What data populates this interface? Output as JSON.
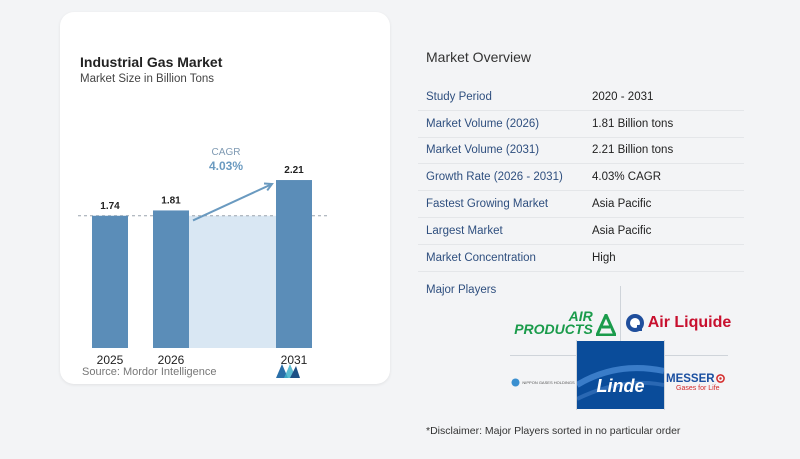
{
  "chart_data": {
    "type": "bar",
    "title": "Industrial Gas Market",
    "subtitle": "Market Size in Billion Tons",
    "categories": [
      "2025",
      "2026",
      "2031"
    ],
    "values": [
      1.74,
      1.81,
      2.21
    ],
    "value_labels": [
      "1.74",
      "1.81",
      "2.21"
    ],
    "annotation": {
      "label": "CAGR",
      "value": "4.03%"
    },
    "reference_line": 1.74,
    "ylim": [
      0,
      2.4
    ],
    "grid": false,
    "legend": "none"
  },
  "source": "Source: Mordor Intelligence",
  "overview": {
    "title": "Market Overview",
    "rows": [
      {
        "label": "Study Period",
        "value": "2020 - 2031"
      },
      {
        "label": "Market Volume (2026)",
        "value": "1.81 Billion tons"
      },
      {
        "label": "Market Volume (2031)",
        "value": "2.21 Billion tons"
      },
      {
        "label": "Growth Rate (2026 - 2031)",
        "value": "4.03% CAGR"
      },
      {
        "label": "Fastest Growing Market",
        "value": "Asia Pacific"
      },
      {
        "label": "Largest Market",
        "value": "Asia Pacific"
      },
      {
        "label": "Market Concentration",
        "value": "High"
      }
    ],
    "players_title": "Major Players",
    "players": {
      "air_products": {
        "line1": "AIR",
        "line2": "PRODUCTS"
      },
      "air_liquide": "Air Liquide",
      "nippon": "NIPPON GASES HOLDINGS",
      "linde": "Linde",
      "messer": {
        "name": "MESSER",
        "tagline": "Gases for Life"
      }
    }
  },
  "disclaimer": "*Disclaimer: Major Players sorted in no particular order",
  "colors": {
    "bar": "#5b8db8",
    "highlight_band": "#d9e7f3",
    "annotation": "#6a9ac0",
    "label_blue": "#2f4f7f",
    "air_products_green": "#1a9b4b",
    "air_liquide_blue": "#1f4e9c",
    "linde_blue": "#0a4c9a",
    "messer_blue": "#1a4fa0",
    "messer_red": "#d42a2a"
  }
}
